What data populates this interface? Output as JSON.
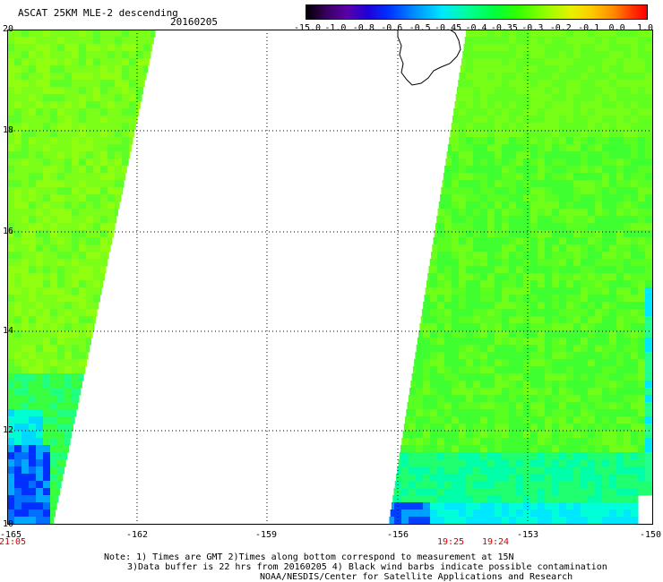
{
  "header": {
    "title": "ASCAT 25KM MLE-2 descending",
    "date": "20160205"
  },
  "colorbar": {
    "labels": [
      "-15.0",
      "-1.0",
      "-0.8",
      "-0.6",
      "-0.5",
      "-0.45",
      "-0.4",
      "-0.35",
      "-0.3",
      "-0.2",
      "-0.1",
      "0.0",
      "1.0"
    ]
  },
  "axes": {
    "y_labels": [
      "20",
      "18",
      "16",
      "14",
      "12",
      "10"
    ],
    "x_labels": [
      "-165",
      "-162",
      "-159",
      "-156",
      "-153",
      "-150"
    ]
  },
  "times": {
    "left": "21:05",
    "mid1": "19:25",
    "mid2": "19:24"
  },
  "notes": {
    "line1": "Note: 1) Times are GMT 2)Times along bottom correspond to measurement at 15N",
    "line2": "3)Data buffer is 22 hrs from 20160205 4) Black wind barbs indicate possible contamination",
    "line3": "NOAA/NESDIS/Center for Satellite Applications and Research"
  },
  "colors": {
    "swath_green": "#4cff20",
    "swath_yellowgreen": "#8cff10",
    "low_blue": "#0030ff",
    "time_red": "#d00000"
  }
}
